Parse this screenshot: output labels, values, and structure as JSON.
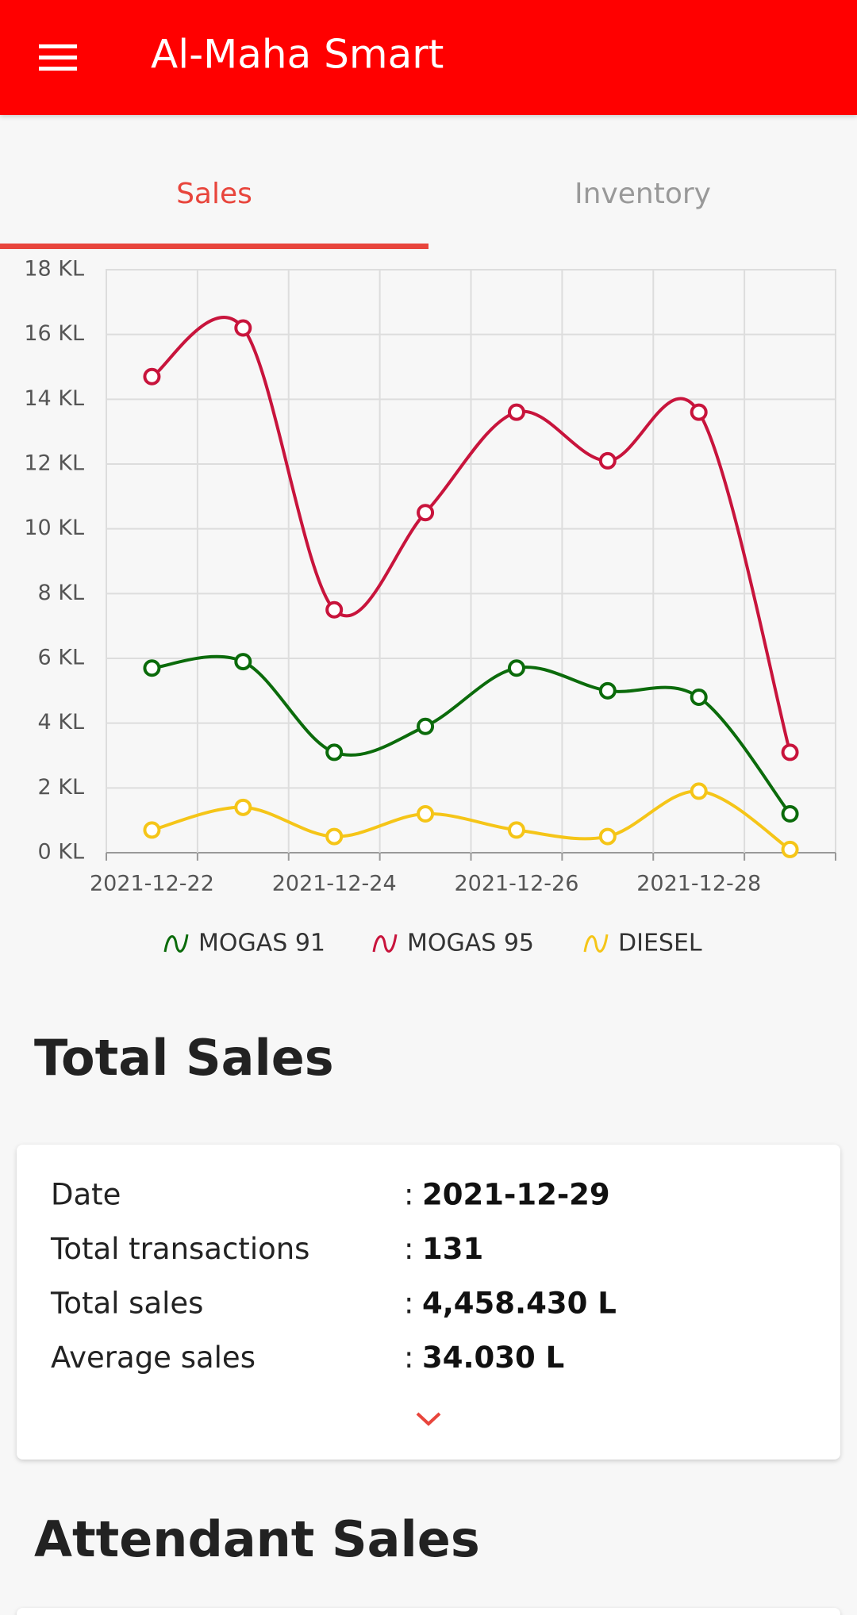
{
  "app_bar": {
    "title": "Al-Maha Smart"
  },
  "tabs": [
    "Sales",
    "Inventory"
  ],
  "chart_data": {
    "type": "line",
    "categories": [
      "2021-12-22",
      null,
      "2021-12-24",
      null,
      "2021-12-26",
      null,
      "2021-12-28",
      null
    ],
    "series": [
      {
        "name": "MOGAS 91",
        "color": "#0b6b0b",
        "values": [
          5.7,
          5.9,
          3.1,
          3.9,
          5.7,
          5.0,
          4.8,
          1.2
        ]
      },
      {
        "name": "MOGAS 95",
        "color": "#c8143c",
        "values": [
          14.7,
          16.2,
          7.5,
          10.5,
          13.6,
          12.1,
          13.6,
          3.1
        ]
      },
      {
        "name": "DIESEL",
        "color": "#f5c518",
        "values": [
          0.7,
          1.4,
          0.5,
          1.2,
          0.7,
          0.5,
          1.9,
          0.1
        ]
      }
    ],
    "ylim": [
      0,
      18
    ],
    "yticks": [
      {
        "value": 0,
        "label": "0 KL"
      },
      {
        "value": 2,
        "label": "2 KL"
      },
      {
        "value": 4,
        "label": "4 KL"
      },
      {
        "value": 6,
        "label": "6 KL"
      },
      {
        "value": 8,
        "label": "8 KL"
      },
      {
        "value": 10,
        "label": "10 KL"
      },
      {
        "value": 12,
        "label": "12 KL"
      },
      {
        "value": 14,
        "label": "14 KL"
      },
      {
        "value": 16,
        "label": "16 KL"
      },
      {
        "value": 18,
        "label": "18 KL"
      }
    ],
    "grid": true,
    "legend": "bottom"
  },
  "total_sales": {
    "heading": "Total Sales",
    "separator": ":",
    "rows": [
      {
        "label": "Date",
        "value": "2021-12-29"
      },
      {
        "label": "Total transactions",
        "value": "131"
      },
      {
        "label": "Total sales",
        "value": "4,458.430 L"
      },
      {
        "label": "Average sales",
        "value": "34.030 L"
      }
    ]
  },
  "attendant_sales": {
    "heading": "Attendant Sales"
  }
}
